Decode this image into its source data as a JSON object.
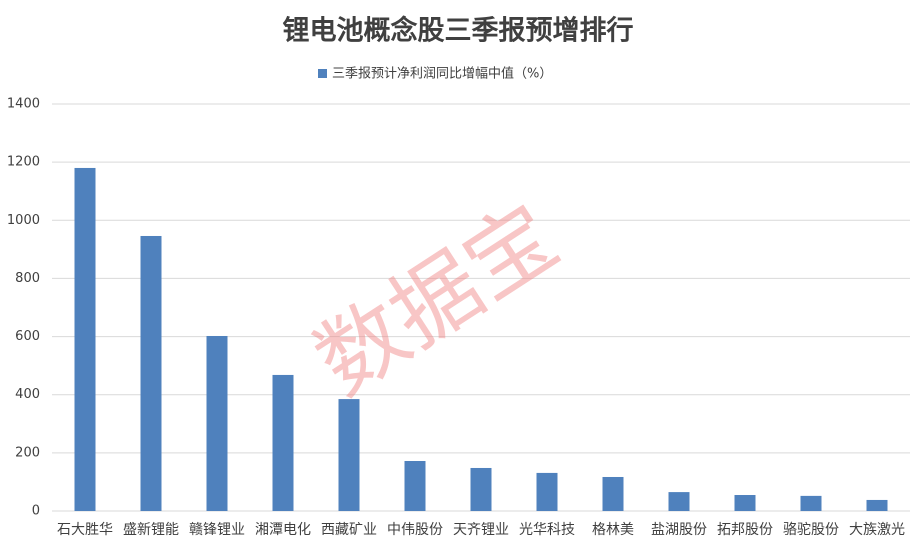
{
  "chart_data": {
    "type": "bar",
    "title": "锂电池概念股三季报预增排行",
    "categories": [
      "石大胜华",
      "盛新锂能",
      "赣锋锂业",
      "湘潭电化",
      "西藏矿业",
      "中伟股份",
      "天齐锂业",
      "光华科技",
      "格林美",
      "盐湖股份",
      "拓邦股份",
      "骆驼股份",
      "大族激光"
    ],
    "series": [
      {
        "name": "三季报预计净利润同比增幅中值（%）",
        "color": "#4f81bd",
        "values": [
          1180,
          946,
          602,
          468,
          385,
          172,
          148,
          131,
          117,
          65,
          55,
          52,
          38
        ]
      }
    ],
    "ylim": [
      0,
      1400
    ],
    "yticks": [
      0,
      200,
      400,
      600,
      800,
      1000,
      1200,
      1400
    ],
    "grid": true,
    "watermark": "数据宝"
  }
}
